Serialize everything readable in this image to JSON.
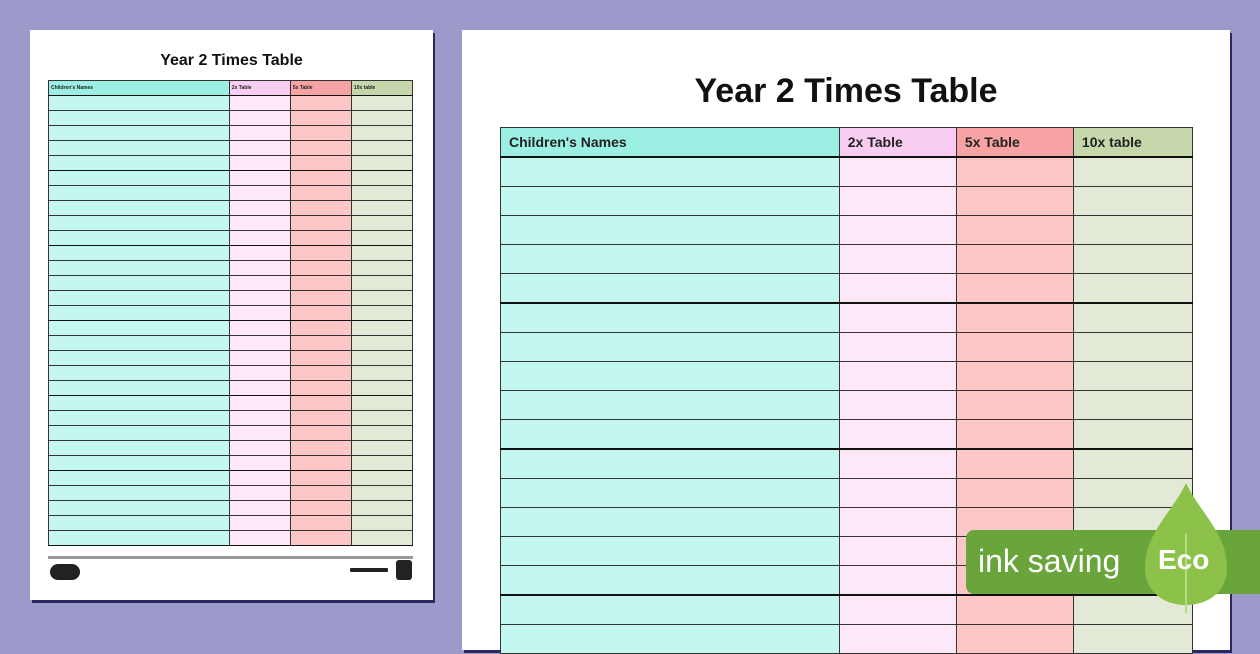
{
  "worksheet": {
    "title": "Year 2 Times Table",
    "columns": [
      "Children's Names",
      "2x Table",
      "5x Table",
      "10x table"
    ],
    "header_colors": [
      "#9cefe3",
      "#f9cdf1",
      "#f7a3a3",
      "#c6d8ab"
    ],
    "cell_colors": [
      "#c3f7f0",
      "#fde8f8",
      "#fdc7c7",
      "#e2e9d6"
    ]
  },
  "badge": {
    "label": "ink saving",
    "eco": "Eco",
    "color": "#6aa53b",
    "icon": "leaf-icon"
  }
}
